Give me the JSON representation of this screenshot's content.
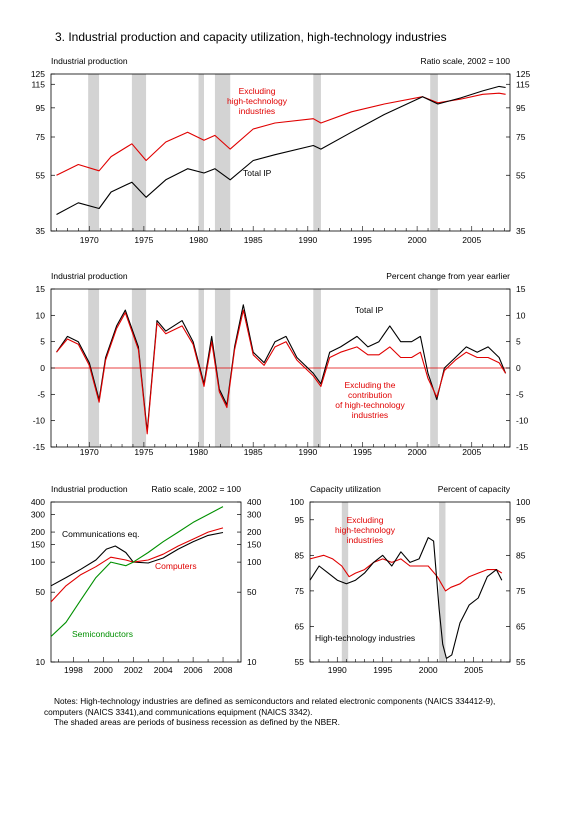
{
  "page_title": "3.  Industrial production and capacity utilization, high-technology industries",
  "notes": {
    "line1": "Notes:  High-technology industries are defined as semiconductors and related electronic components (NAICS 334412-9),",
    "line2": "computers (NAICS 3341),and communications equipment (NAICS 3342).",
    "line3": "The shaded areas are periods of business recession as defined by the NBER."
  },
  "colors": {
    "total": "#000000",
    "excluding": "#e00000",
    "communications": "#000000",
    "computers": "#e00000",
    "semiconductors": "#009000",
    "recession": "#d3d3d3",
    "zero_line": "#e00000"
  },
  "chart_data": [
    {
      "id": "panel1",
      "type": "line",
      "title_left": "Industrial production",
      "title_right": "Ratio scale, 2002 = 100",
      "scale": "log",
      "xlim": [
        1966.5,
        2008.5
      ],
      "ylim": [
        35,
        125
      ],
      "y_ticks": [
        35,
        55,
        75,
        95,
        115,
        125
      ],
      "x_ticks": [
        1970,
        1975,
        1980,
        1985,
        1990,
        1995,
        2000,
        2005
      ],
      "grid": false,
      "recessions": [
        [
          1969.9,
          1970.9
        ],
        [
          1973.9,
          1975.2
        ],
        [
          1980.0,
          1980.5
        ],
        [
          1981.5,
          1982.9
        ],
        [
          1990.5,
          1991.2
        ],
        [
          2001.2,
          2001.9
        ]
      ],
      "series": [
        {
          "key": "excluding",
          "name": "Excluding high-technology industries",
          "label_lines": [
            "Excluding",
            "high-technology",
            "industries"
          ],
          "x": [
            1967,
            1969,
            1970.9,
            1972,
            1973.9,
            1975.2,
            1977,
            1979,
            1980.5,
            1981.5,
            1982.9,
            1985,
            1987,
            1990.5,
            1991.2,
            1994,
            1997,
            2000.5,
            2001.9,
            2004,
            2006,
            2007.5,
            2008.1
          ],
          "y": [
            55,
            60,
            57,
            64,
            71,
            62,
            72,
            78,
            73,
            76,
            68,
            80,
            84,
            87,
            84,
            92,
            98,
            104,
            99,
            102,
            106,
            107,
            106
          ]
        },
        {
          "key": "total",
          "name": "Total IP",
          "label_lines": [
            "Total IP"
          ],
          "x": [
            1967,
            1969,
            1970.9,
            1972,
            1973.9,
            1975.2,
            1977,
            1979,
            1980.5,
            1981.5,
            1982.9,
            1985,
            1987,
            1990.5,
            1991.2,
            1994,
            1997,
            2000.5,
            2001.9,
            2004,
            2006,
            2007.5,
            2008.1
          ],
          "y": [
            40,
            44,
            42,
            48,
            52,
            46,
            53,
            58,
            56,
            58,
            53,
            62,
            65,
            70,
            68,
            78,
            90,
            104,
            98,
            103,
            109,
            113,
            112
          ]
        }
      ]
    },
    {
      "id": "panel2",
      "type": "line",
      "title_left": "Industrial production",
      "title_right": "Percent change from year earlier",
      "scale": "linear",
      "xlim": [
        1966.5,
        2008.5
      ],
      "ylim": [
        -15,
        15
      ],
      "y_ticks": [
        -15,
        -10,
        -5,
        0,
        5,
        10,
        15
      ],
      "x_ticks": [
        1970,
        1975,
        1980,
        1985,
        1990,
        1995,
        2000,
        2005
      ],
      "grid": false,
      "recessions": [
        [
          1969.9,
          1970.9
        ],
        [
          1973.9,
          1975.2
        ],
        [
          1980.0,
          1980.5
        ],
        [
          1981.5,
          1982.9
        ],
        [
          1990.5,
          1991.2
        ],
        [
          2001.2,
          2001.9
        ]
      ],
      "series": [
        {
          "key": "total",
          "name": "Total IP",
          "label_lines": [
            "Total IP"
          ],
          "x": [
            1967,
            1968,
            1969,
            1970,
            1970.9,
            1971.5,
            1972.5,
            1973.3,
            1974.5,
            1975.3,
            1976.2,
            1977,
            1978.5,
            1979.5,
            1980.5,
            1981.2,
            1981.9,
            1982.6,
            1983.3,
            1984.1,
            1985,
            1986,
            1987,
            1988,
            1989,
            1990.5,
            1991.2,
            1992,
            1993,
            1994.5,
            1995.5,
            1996.5,
            1997.5,
            1998.5,
            1999.5,
            2000.3,
            2001,
            2001.8,
            2002.5,
            2003.5,
            2004.5,
            2005.5,
            2006.5,
            2007.5,
            2008.1
          ],
          "y": [
            3,
            6,
            5,
            1,
            -6,
            2,
            8,
            11,
            4,
            -12,
            9,
            7,
            9,
            5,
            -3,
            6,
            -4,
            -7,
            4,
            12,
            3,
            1,
            5,
            6,
            2,
            -1,
            -3,
            3,
            4,
            6,
            4,
            5,
            8,
            5,
            5,
            6,
            -1,
            -6,
            0,
            2,
            4,
            3,
            4,
            2,
            -1
          ]
        },
        {
          "key": "excluding",
          "name": "Excluding the contribution of high-technology industries",
          "label_lines": [
            "Excluding the",
            "contribution",
            "of high-technology",
            "industries"
          ],
          "x": [
            1967,
            1968,
            1969,
            1970,
            1970.9,
            1971.5,
            1972.5,
            1973.3,
            1974.5,
            1975.3,
            1976.2,
            1977,
            1978.5,
            1979.5,
            1980.5,
            1981.2,
            1981.9,
            1982.6,
            1983.3,
            1984.1,
            1985,
            1986,
            1987,
            1988,
            1989,
            1990.5,
            1991.2,
            1992,
            1993,
            1994.5,
            1995.5,
            1996.5,
            1997.5,
            1998.5,
            1999.5,
            2000.3,
            2001,
            2001.8,
            2002.5,
            2003.5,
            2004.5,
            2005.5,
            2006.5,
            2007.5,
            2008.1
          ],
          "y": [
            3,
            5.5,
            4.5,
            0.5,
            -6.5,
            1.5,
            7.5,
            10.5,
            3.5,
            -12.5,
            8.5,
            6.5,
            8,
            4.5,
            -3.5,
            5,
            -4.5,
            -7.5,
            3.5,
            11,
            2.5,
            0.5,
            4,
            5,
            1.5,
            -1.5,
            -3.5,
            2,
            3,
            4,
            2.5,
            2.5,
            4,
            2,
            2,
            3,
            -2,
            -5.5,
            -0.5,
            1.5,
            3,
            2,
            2,
            1,
            -1
          ]
        }
      ]
    },
    {
      "id": "panel3",
      "type": "line",
      "title_left": "Industrial production",
      "title_right": "Ratio scale, 2002 = 100",
      "scale": "log",
      "xlim": [
        1996.5,
        2009.2
      ],
      "ylim": [
        10,
        400
      ],
      "y_ticks": [
        10,
        50,
        100,
        150,
        200,
        300,
        400
      ],
      "x_ticks": [
        1998,
        2000,
        2002,
        2004,
        2006,
        2008
      ],
      "grid": false,
      "recessions": [],
      "series": [
        {
          "key": "communications",
          "name": "Communications eq.",
          "label_lines": [
            "Communications eq."
          ],
          "x": [
            1996.5,
            1997.5,
            1998.5,
            1999.5,
            2000.2,
            2000.8,
            2001.5,
            2002,
            2003,
            2004,
            2005,
            2006,
            2007,
            2008
          ],
          "y": [
            58,
            70,
            85,
            105,
            135,
            145,
            125,
            100,
            98,
            110,
            135,
            160,
            185,
            198
          ]
        },
        {
          "key": "computers",
          "name": "Computers",
          "label_lines": [
            "Computers"
          ],
          "x": [
            1996.5,
            1997.5,
            1998.5,
            1999.5,
            2000.5,
            2001.5,
            2002,
            2003,
            2004,
            2005,
            2006,
            2007,
            2008
          ],
          "y": [
            40,
            58,
            75,
            90,
            112,
            105,
            100,
            105,
            120,
            145,
            170,
            200,
            220
          ]
        },
        {
          "key": "semiconductors",
          "name": "Semiconductors",
          "label_lines": [
            "Semiconductors"
          ],
          "x": [
            1996.5,
            1997.5,
            1998.5,
            1999.5,
            2000.5,
            2001.5,
            2002,
            2003,
            2004,
            2005,
            2006,
            2007,
            2008
          ],
          "y": [
            18,
            25,
            42,
            70,
            100,
            92,
            100,
            125,
            160,
            200,
            250,
            300,
            360
          ]
        }
      ]
    },
    {
      "id": "panel4",
      "type": "line",
      "title_left": "Capacity utilization",
      "title_right": "Percent of capacity",
      "scale": "linear",
      "xlim": [
        1987.0,
        2009.0
      ],
      "ylim": [
        55,
        100
      ],
      "y_ticks": [
        55,
        65,
        75,
        85,
        95,
        100
      ],
      "x_ticks": [
        1990,
        1995,
        2000,
        2005
      ],
      "grid": false,
      "recessions": [
        [
          1990.5,
          1991.2
        ],
        [
          2001.2,
          2001.9
        ]
      ],
      "series": [
        {
          "key": "excluding",
          "name": "Excluding high-technology industries",
          "label_lines": [
            "Excluding",
            "high-technology",
            "industries"
          ],
          "x": [
            1987,
            1988.5,
            1989.5,
            1990.5,
            1991.3,
            1992,
            1993,
            1994,
            1995,
            1996,
            1997,
            1998,
            1999,
            2000,
            2001,
            2001.9,
            2002.5,
            2003.5,
            2004.5,
            2005.5,
            2006.5,
            2007.5,
            2008.1
          ],
          "y": [
            84,
            85,
            84,
            82,
            79,
            80,
            81,
            83,
            84,
            83,
            84,
            82,
            82,
            82,
            79,
            75,
            76,
            77,
            79,
            80,
            81,
            81,
            80
          ]
        },
        {
          "key": "total",
          "name": "High-technology industries",
          "label_lines": [
            "High-technology industries"
          ],
          "x": [
            1987,
            1988,
            1989,
            1990,
            1991,
            1992,
            1993,
            1994,
            1995,
            1996,
            1997,
            1998,
            1999,
            2000,
            2000.6,
            2001.2,
            2001.6,
            2002,
            2002.6,
            2003.5,
            2004.5,
            2005.5,
            2006.5,
            2007.5,
            2008.1
          ],
          "y": [
            78,
            82,
            80,
            78,
            77,
            78,
            80,
            83,
            85,
            82,
            86,
            83,
            84,
            90,
            89,
            70,
            60,
            56,
            57,
            66,
            71,
            73,
            79,
            81,
            78
          ]
        }
      ]
    }
  ]
}
